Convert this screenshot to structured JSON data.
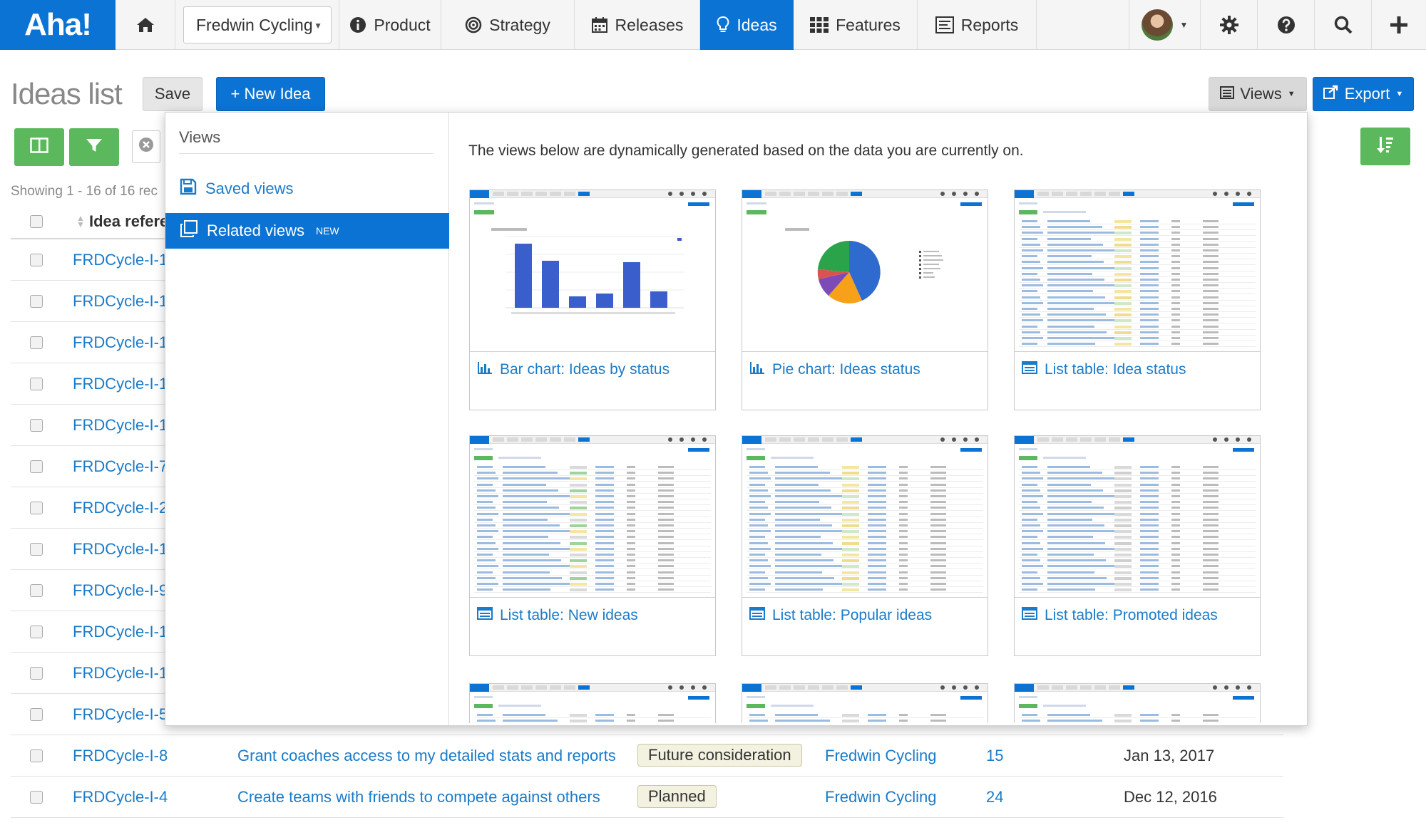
{
  "nav": {
    "logo": "Aha!",
    "workspace": "Fredwin Cycling",
    "items": [
      {
        "label": "Product",
        "icon": "info-circle-icon"
      },
      {
        "label": "Strategy",
        "icon": "target-icon"
      },
      {
        "label": "Releases",
        "icon": "calendar-icon"
      },
      {
        "label": "Ideas",
        "icon": "lightbulb-icon",
        "active": true
      },
      {
        "label": "Features",
        "icon": "grid-icon"
      },
      {
        "label": "Reports",
        "icon": "report-icon"
      }
    ]
  },
  "header": {
    "title": "Ideas list",
    "save_label": "Save",
    "new_idea_label": "+ New Idea",
    "views_label": "Views",
    "export_label": "Export"
  },
  "list": {
    "showing": "Showing 1 - 16 of 16 rec",
    "column_ref": "Idea refere",
    "rows": [
      {
        "ref": "FRDCycle-I-1"
      },
      {
        "ref": "FRDCycle-I-1"
      },
      {
        "ref": "FRDCycle-I-1"
      },
      {
        "ref": "FRDCycle-I-1"
      },
      {
        "ref": "FRDCycle-I-1"
      },
      {
        "ref": "FRDCycle-I-7"
      },
      {
        "ref": "FRDCycle-I-2"
      },
      {
        "ref": "FRDCycle-I-1"
      },
      {
        "ref": "FRDCycle-I-9"
      },
      {
        "ref": "FRDCycle-I-1"
      },
      {
        "ref": "FRDCycle-I-1"
      },
      {
        "ref": "FRDCycle-I-5"
      }
    ],
    "full_rows": [
      {
        "ref": "FRDCycle-I-8",
        "name": "Grant coaches access to my detailed stats and reports",
        "status": "Future consideration",
        "product": "Fredwin Cycling",
        "votes": "15",
        "date": "Jan 13, 2017"
      },
      {
        "ref": "FRDCycle-I-4",
        "name": "Create teams with friends to compete against others",
        "status": "Planned",
        "product": "Fredwin Cycling",
        "votes": "24",
        "date": "Dec 12, 2016"
      }
    ]
  },
  "views_panel": {
    "side_title": "Views",
    "saved_views": "Saved views",
    "related_views": "Related views",
    "new_badge": "NEW",
    "description": "The views below are dynamically generated based on the data you are currently on.",
    "cards": [
      {
        "label": "Bar chart: Ideas by status",
        "icon": "bar-chart-icon"
      },
      {
        "label": "Pie chart: Ideas status",
        "icon": "bar-chart-icon"
      },
      {
        "label": "List table: Idea status",
        "icon": "list-table-icon"
      },
      {
        "label": "List table: New ideas",
        "icon": "list-table-icon"
      },
      {
        "label": "List table: Popular ideas",
        "icon": "list-table-icon"
      },
      {
        "label": "List table: Promoted ideas",
        "icon": "list-table-icon"
      }
    ]
  },
  "colors": {
    "brand_blue": "#0b73d4",
    "green": "#5cb85c",
    "link": "#1a7bc9"
  }
}
